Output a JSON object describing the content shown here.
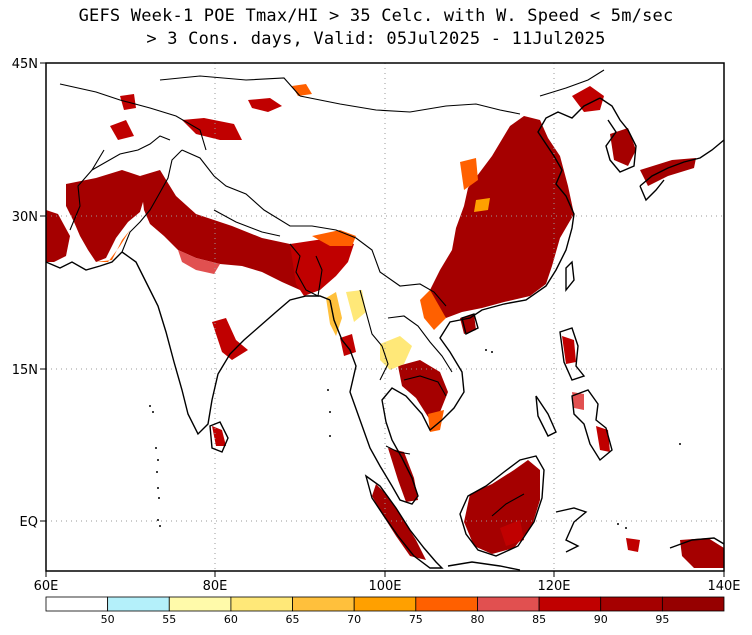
{
  "title": {
    "line1": "GEFS Week-1 POE Tmax/HI > 35 Celc. with W. Speed < 5m/sec",
    "line2": "> 3 Cons. days, Valid: 05Jul2025 - 11Jul2025"
  },
  "map": {
    "lon_range": [
      60,
      140
    ],
    "lat_range": [
      -7,
      45
    ],
    "lon_ticks": [
      {
        "value": 60,
        "label": "60E"
      },
      {
        "value": 80,
        "label": "80E"
      },
      {
        "value": 100,
        "label": "100E"
      },
      {
        "value": 120,
        "label": "120E"
      },
      {
        "value": 140,
        "label": "140E"
      }
    ],
    "lat_ticks": [
      {
        "value": 45,
        "label": "45N"
      },
      {
        "value": 30,
        "label": "30N"
      },
      {
        "value": 15,
        "label": "15N"
      },
      {
        "value": 0,
        "label": "EQ"
      }
    ],
    "grid": "dotted",
    "coastline_color": "#000000",
    "border_color": "#000000"
  },
  "colorbar": {
    "labels": [
      "50",
      "55",
      "60",
      "65",
      "70",
      "75",
      "80",
      "85",
      "90",
      "95"
    ],
    "colors": [
      "#ffffff",
      "#b4f0fa",
      "#fffaaa",
      "#ffe878",
      "#ffc03c",
      "#ffa000",
      "#ff6000",
      "#e15050",
      "#c00000",
      "#a50000",
      "#960000"
    ]
  }
}
